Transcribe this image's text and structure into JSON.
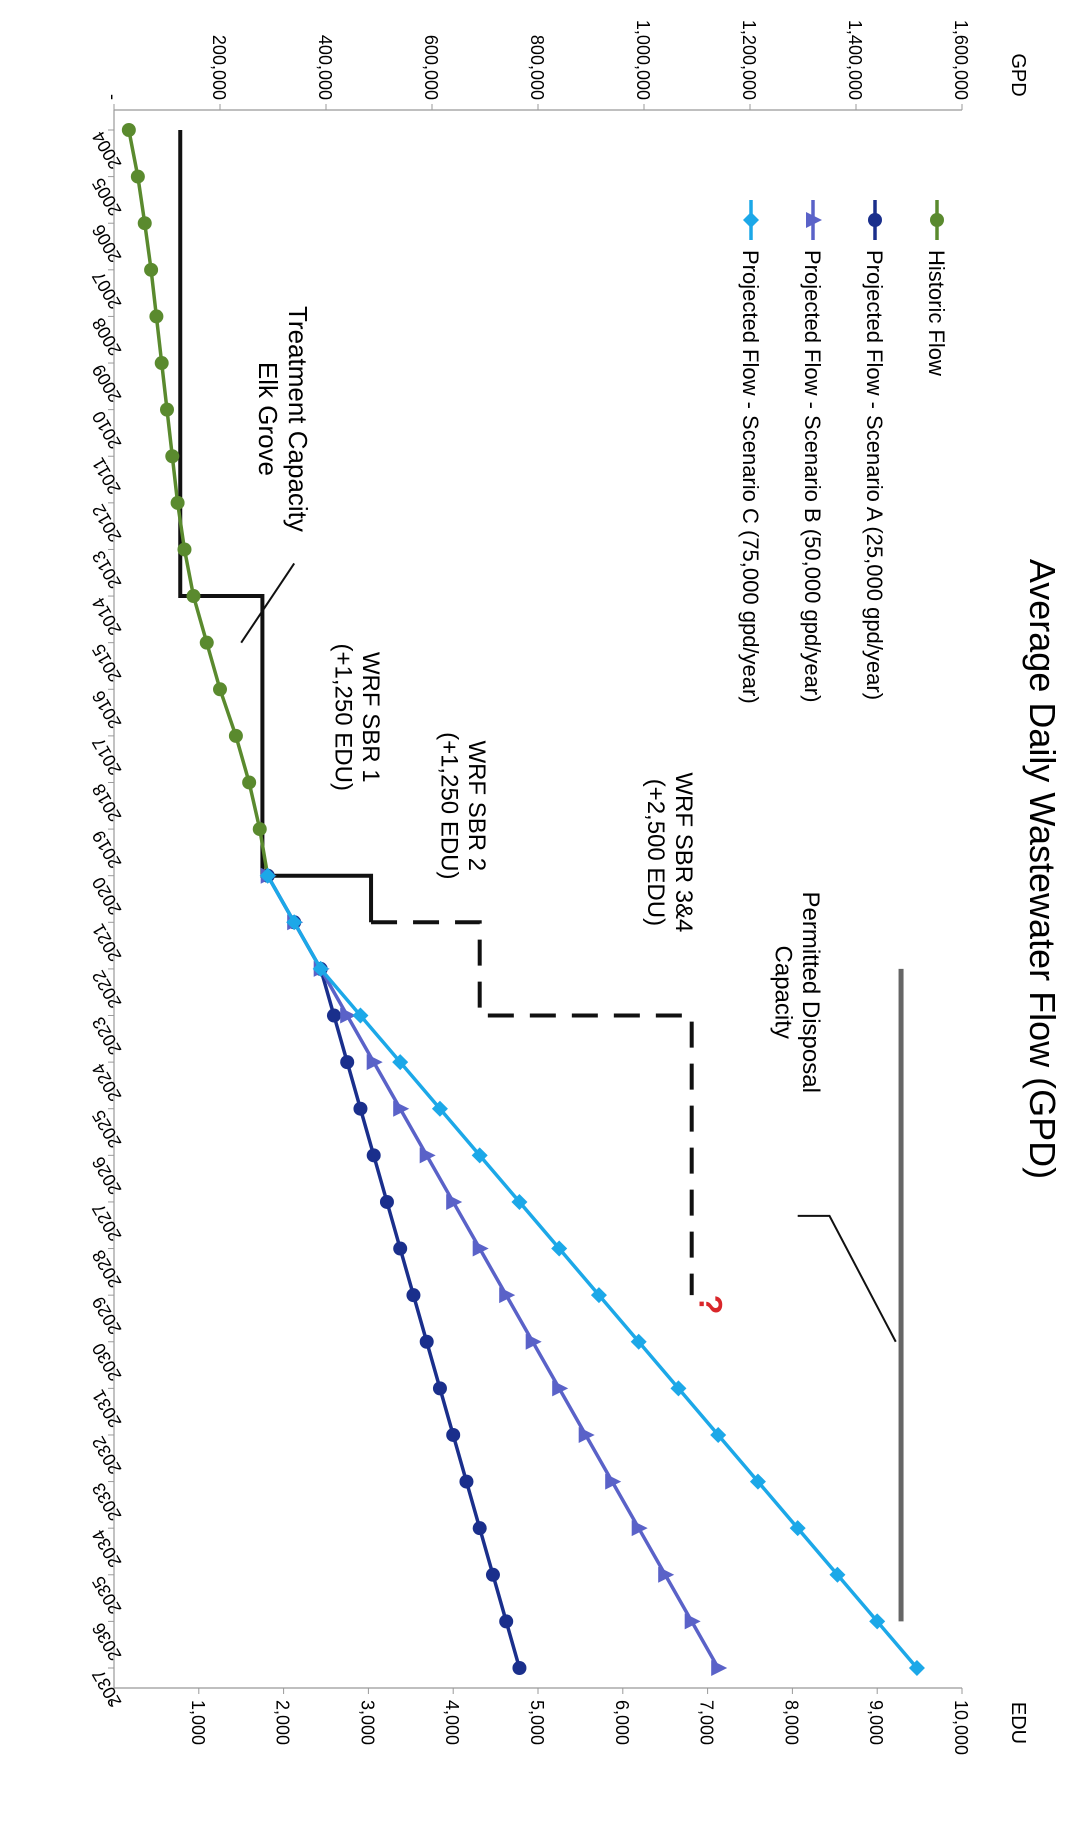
{
  "chart_data": {
    "type": "line",
    "orientation": "rotated-90-clockwise",
    "title": "Average Daily Wastewater Flow (GPD)",
    "left_axis_label": "GPD",
    "right_axis_label": "EDU",
    "gpd_ticks": [
      "-",
      "200,000",
      "400,000",
      "600,000",
      "800,000",
      "1,000,000",
      "1,200,000",
      "1,400,000",
      "1,600,000"
    ],
    "edu_ticks": [
      "-",
      "1,000",
      "2,000",
      "3,000",
      "4,000",
      "5,000",
      "6,000",
      "7,000",
      "8,000",
      "9,000",
      "10,000"
    ],
    "ylim_gpd": [
      0,
      1600000
    ],
    "ylim_edu": [
      0,
      10000
    ],
    "x_categories": [
      "2004",
      "2005",
      "2006",
      "2007",
      "2008",
      "2009",
      "2010",
      "2011",
      "2012",
      "2013",
      "2014",
      "2015",
      "2016",
      "2017",
      "2018",
      "2019",
      "2020",
      "2021",
      "2022",
      "2023",
      "2024",
      "2025",
      "2026",
      "2027",
      "2028",
      "2029",
      "2030",
      "2031",
      "2032",
      "2033",
      "2034",
      "2035",
      "2036",
      "2037"
    ],
    "series": [
      {
        "name": "Historic Flow",
        "color": "#5a8a2e",
        "marker": "circle",
        "x": [
          2004,
          2005,
          2006,
          2007,
          2008,
          2009,
          2010,
          2011,
          2012,
          2013,
          2014,
          2015,
          2016,
          2017,
          2018,
          2019,
          2020
        ],
        "values": [
          28000,
          45000,
          58000,
          70000,
          80000,
          90000,
          100000,
          110000,
          120000,
          133000,
          150000,
          175000,
          200000,
          230000,
          255000,
          275000,
          290000
        ]
      },
      {
        "name": "Projected Flow - Scenario A (25,000 gpd/year)",
        "color": "#1a2f8c",
        "marker": "circle",
        "x": [
          2020,
          2021,
          2022,
          2023,
          2024,
          2025,
          2026,
          2027,
          2028,
          2029,
          2030,
          2031,
          2032,
          2033,
          2034,
          2035,
          2036,
          2037
        ],
        "values": [
          290000,
          340000,
          390000,
          415000,
          440000,
          465000,
          490000,
          515000,
          540000,
          565000,
          590000,
          615000,
          640000,
          665000,
          690000,
          715000,
          740000,
          765000
        ]
      },
      {
        "name": "Projected Flow - Scenario B (50,000 gpd/year)",
        "color": "#5a62c8",
        "marker": "triangle",
        "x": [
          2020,
          2021,
          2022,
          2023,
          2024,
          2025,
          2026,
          2027,
          2028,
          2029,
          2030,
          2031,
          2032,
          2033,
          2034,
          2035,
          2036,
          2037
        ],
        "values": [
          290000,
          340000,
          390000,
          440000,
          490000,
          540000,
          590000,
          640000,
          690000,
          740000,
          790000,
          840000,
          890000,
          940000,
          990000,
          1040000,
          1090000,
          1140000
        ]
      },
      {
        "name": "Projected Flow - Scenario C (75,000 gpd/year)",
        "color": "#1ca8e8",
        "marker": "diamond",
        "x": [
          2020,
          2021,
          2022,
          2023,
          2024,
          2025,
          2026,
          2027,
          2028,
          2029,
          2030,
          2031,
          2032,
          2033,
          2034,
          2035,
          2036,
          2037
        ],
        "values": [
          290000,
          340000,
          390000,
          465000,
          540000,
          615000,
          690000,
          765000,
          840000,
          915000,
          990000,
          1065000,
          1140000,
          1215000,
          1290000,
          1365000,
          1440000,
          1515000
        ]
      }
    ],
    "treatment_capacity": {
      "color": "#111111",
      "segments": [
        {
          "x_start": 2004,
          "x_end": 2014,
          "value": 125000
        },
        {
          "x_start": 2014,
          "x_end": 2020,
          "value": 280000
        },
        {
          "x_start": 2020,
          "x_end": 2021,
          "value": 485000
        }
      ]
    },
    "treatment_capacity_future": {
      "style": "dashed",
      "segments": [
        {
          "x_start": 2021,
          "x_end": 2023,
          "value": 690000
        },
        {
          "x_start": 2023,
          "x_end": 2029,
          "value": 1090000
        }
      ]
    },
    "permitted_disposal_capacity": {
      "color": "#666666",
      "x_start": 2022,
      "x_end": 2036,
      "value": 1485000
    },
    "annotations": {
      "treatment_capacity": [
        "Treatment Capacity",
        "Elk Grove"
      ],
      "sbr1": [
        "WRF SBR 1",
        "(+1,250 EDU)"
      ],
      "sbr2": [
        "WRF SBR 2",
        "(+1,250 EDU)"
      ],
      "sbr34": [
        "WRF SBR 3&4",
        "(+2,500 EDU)"
      ],
      "permitted": [
        "Permitted Disposal",
        "Capacity"
      ],
      "question": "?"
    },
    "question_color": "#d9262a",
    "grid": false,
    "legend_position": "top-left (rotated view)"
  }
}
